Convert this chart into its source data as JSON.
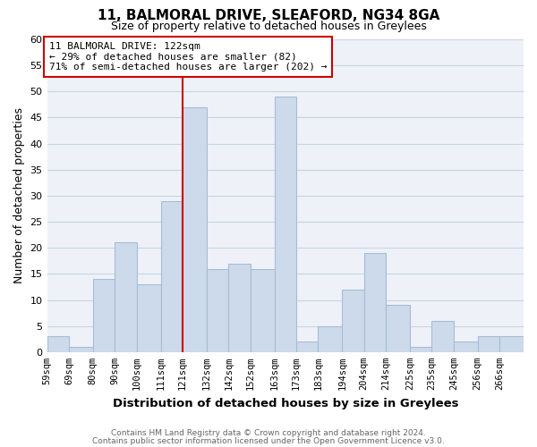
{
  "title": "11, BALMORAL DRIVE, SLEAFORD, NG34 8GA",
  "subtitle": "Size of property relative to detached houses in Greylees",
  "xlabel": "Distribution of detached houses by size in Greylees",
  "ylabel": "Number of detached properties",
  "bin_labels": [
    "59sqm",
    "69sqm",
    "80sqm",
    "90sqm",
    "100sqm",
    "111sqm",
    "121sqm",
    "132sqm",
    "142sqm",
    "152sqm",
    "163sqm",
    "173sqm",
    "183sqm",
    "194sqm",
    "204sqm",
    "214sqm",
    "225sqm",
    "235sqm",
    "245sqm",
    "256sqm",
    "266sqm"
  ],
  "bin_edges": [
    59,
    69,
    80,
    90,
    100,
    111,
    121,
    132,
    142,
    152,
    163,
    173,
    183,
    194,
    204,
    214,
    225,
    235,
    245,
    256,
    266
  ],
  "bin_widths": [
    10,
    11,
    10,
    10,
    11,
    10,
    11,
    10,
    10,
    11,
    10,
    10,
    11,
    10,
    10,
    11,
    10,
    10,
    11,
    10,
    11
  ],
  "heights": [
    3,
    1,
    14,
    21,
    13,
    29,
    47,
    16,
    17,
    16,
    49,
    2,
    5,
    12,
    19,
    9,
    1,
    6,
    2,
    3,
    3
  ],
  "bar_color": "#cddaeb",
  "bar_edgecolor": "#a8bcd4",
  "vline_x": 121,
  "vline_color": "#cc0000",
  "annotation_line1": "11 BALMORAL DRIVE: 122sqm",
  "annotation_line2": "← 29% of detached houses are smaller (82)",
  "annotation_line3": "71% of semi-detached houses are larger (202) →",
  "annotation_box_edgecolor": "#cc0000",
  "annotation_box_facecolor": "#ffffff",
  "ylim": [
    0,
    60
  ],
  "yticks": [
    0,
    5,
    10,
    15,
    20,
    25,
    30,
    35,
    40,
    45,
    50,
    55,
    60
  ],
  "grid_color": "#c8d4e4",
  "bg_color": "#eef2f8",
  "footer1": "Contains HM Land Registry data © Crown copyright and database right 2024.",
  "footer2": "Contains public sector information licensed under the Open Government Licence v3.0."
}
